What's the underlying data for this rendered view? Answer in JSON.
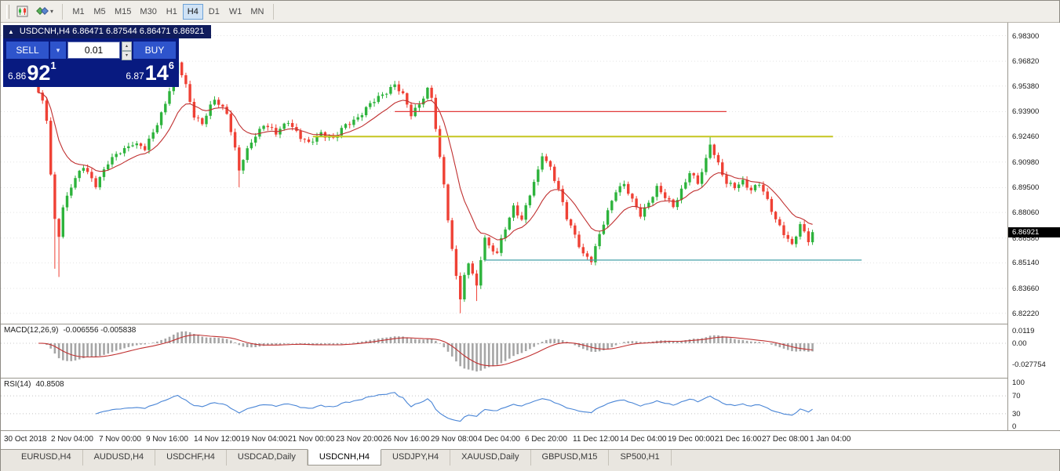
{
  "colors": {
    "candle_up": "#2db33c",
    "candle_down": "#ef4135",
    "ma_line": "#c03030",
    "macd_hist": "#a6a6a6",
    "macd_signal": "#c03030",
    "rsi_line": "#4985d6",
    "grid": "#e3e3e3",
    "badge_bg": "#000000",
    "trade_panel_bg": "#081a80",
    "trade_button_bg": "#2e54cc",
    "title_bg": "#101c5c"
  },
  "icons": {
    "collapse": "▲",
    "caret_down": "▾",
    "spin_up": "▴",
    "spin_down": "▾"
  },
  "window": {
    "toolbar": {
      "timeframes": [
        "M1",
        "M5",
        "M15",
        "M30",
        "H1",
        "H4",
        "D1",
        "W1",
        "MN"
      ],
      "active_timeframe": "H4"
    },
    "chart_title": "USDCNH,H4 6.86471 6.87544 6.86471 6.86921",
    "trade_panel": {
      "sell_label": "SELL",
      "buy_label": "BUY",
      "lot_size": "0.01",
      "bid_small": "6.86",
      "bid_big": "92",
      "bid_sup": "1",
      "ask_small": "6.87",
      "ask_big": "14",
      "ask_sup": "6"
    },
    "tabs": [
      "EURUSD,H4",
      "AUDUSD,H4",
      "USDCHF,H4",
      "USDCAD,Daily",
      "USDCNH,H4",
      "USDJPY,H4",
      "XAUUSD,Daily",
      "GBPUSD,M15",
      "SP500,H1"
    ],
    "active_tab": "USDCNH,H4"
  },
  "chart_data": {
    "type": "candlestick",
    "symbol": "USDCNH",
    "timeframe": "H4",
    "ohlc_display": {
      "open": "6.86471",
      "high": "6.87544",
      "low": "6.86471",
      "close": "6.86921"
    },
    "current_price": "6.86921",
    "price_axis": [
      "6.98300",
      "6.96820",
      "6.95380",
      "6.93900",
      "6.92460",
      "6.90980",
      "6.89500",
      "6.88060",
      "6.86580",
      "6.85140",
      "6.83660",
      "6.82220"
    ],
    "time_axis": [
      "30 Oct 2018",
      "2 Nov 04:00",
      "7 Nov 00:00",
      "9 Nov 16:00",
      "14 Nov 12:00",
      "19 Nov 04:00",
      "21 Nov 00:00",
      "23 Nov 20:00",
      "26 Nov 16:00",
      "29 Nov 08:00",
      "4 Dec 04:00",
      "6 Dec 20:00",
      "11 Dec 12:00",
      "14 Dec 04:00",
      "19 Dec 00:00",
      "21 Dec 16:00",
      "27 Dec 08:00",
      "1 Jan 04:00"
    ],
    "close_waypoints": [
      [
        0,
        6.95
      ],
      [
        1,
        6.944
      ],
      [
        2,
        6.934
      ],
      [
        3,
        6.902
      ],
      [
        4,
        6.876
      ],
      [
        5,
        6.868
      ],
      [
        6,
        6.884
      ],
      [
        8,
        6.896
      ],
      [
        11,
        6.907
      ],
      [
        14,
        6.897
      ],
      [
        17,
        6.909
      ],
      [
        20,
        6.916
      ],
      [
        23,
        6.921
      ],
      [
        26,
        6.917
      ],
      [
        28,
        6.927
      ],
      [
        31,
        6.944
      ],
      [
        34,
        6.967
      ],
      [
        36,
        6.954
      ],
      [
        38,
        6.937
      ],
      [
        40,
        6.932
      ],
      [
        43,
        6.946
      ],
      [
        46,
        6.939
      ],
      [
        48,
        6.917
      ],
      [
        49,
        6.905
      ],
      [
        52,
        6.922
      ],
      [
        55,
        6.932
      ],
      [
        58,
        6.926
      ],
      [
        61,
        6.934
      ],
      [
        64,
        6.924
      ],
      [
        66,
        6.92
      ],
      [
        69,
        6.927
      ],
      [
        72,
        6.923
      ],
      [
        75,
        6.931
      ],
      [
        78,
        6.936
      ],
      [
        81,
        6.943
      ],
      [
        84,
        6.949
      ],
      [
        87,
        6.955
      ],
      [
        89,
        6.948
      ],
      [
        91,
        6.937
      ],
      [
        93,
        6.944
      ],
      [
        95,
        6.952
      ],
      [
        96,
        6.947
      ],
      [
        97,
        6.929
      ],
      [
        98,
        6.911
      ],
      [
        99,
        6.897
      ],
      [
        100,
        6.877
      ],
      [
        101,
        6.859
      ],
      [
        102,
        6.845
      ],
      [
        103,
        6.831
      ],
      [
        104,
        6.843
      ],
      [
        105,
        6.851
      ],
      [
        106,
        6.845
      ],
      [
        107,
        6.837
      ],
      [
        108,
        6.854
      ],
      [
        109,
        6.867
      ],
      [
        110,
        6.861
      ],
      [
        112,
        6.857
      ],
      [
        114,
        6.871
      ],
      [
        116,
        6.884
      ],
      [
        118,
        6.877
      ],
      [
        120,
        6.891
      ],
      [
        122,
        6.904
      ],
      [
        123,
        6.914
      ],
      [
        125,
        6.907
      ],
      [
        127,
        6.894
      ],
      [
        129,
        6.877
      ],
      [
        131,
        6.867
      ],
      [
        133,
        6.857
      ],
      [
        135,
        6.853
      ],
      [
        137,
        6.867
      ],
      [
        139,
        6.881
      ],
      [
        141,
        6.894
      ],
      [
        143,
        6.897
      ],
      [
        145,
        6.887
      ],
      [
        147,
        6.879
      ],
      [
        149,
        6.887
      ],
      [
        151,
        6.895
      ],
      [
        153,
        6.889
      ],
      [
        155,
        6.884
      ],
      [
        157,
        6.894
      ],
      [
        159,
        6.904
      ],
      [
        161,
        6.897
      ],
      [
        163,
        6.911
      ],
      [
        164,
        6.921
      ],
      [
        166,
        6.909
      ],
      [
        168,
        6.897
      ],
      [
        170,
        6.895
      ],
      [
        172,
        6.899
      ],
      [
        174,
        6.894
      ],
      [
        176,
        6.897
      ],
      [
        178,
        6.887
      ],
      [
        180,
        6.877
      ],
      [
        182,
        6.869
      ],
      [
        184,
        6.861
      ],
      [
        186,
        6.873
      ],
      [
        188,
        6.865
      ],
      [
        189,
        6.8692
      ]
    ],
    "wick_overrides": {
      "4": {
        "low": 6.848
      },
      "5": {
        "low": 6.8432
      },
      "34": {
        "high": 6.9765
      },
      "49": {
        "low": 6.8952
      },
      "103": {
        "low": 6.8222
      },
      "107": {
        "low": 6.8293
      },
      "135": {
        "low": 6.8502
      },
      "164": {
        "high": 6.9249
      }
    },
    "hlines": [
      {
        "name": "resistance-red",
        "price": 6.939,
        "from_bar": 87,
        "to_bar": 168,
        "color": "#e23b3b",
        "w": 1.3
      },
      {
        "name": "resistance-yellow",
        "price": 6.9246,
        "from_bar": 67,
        "to_bar": 194,
        "color": "#c6c621",
        "w": 2
      },
      {
        "name": "support-teal",
        "price": 6.853,
        "from_bar": 109,
        "to_bar": 201,
        "color": "#45a0a8",
        "w": 1.3
      }
    ],
    "macd": {
      "label": "MACD(12,26,9)",
      "values": "-0.006556 -0.005838",
      "axis": [
        "0.0119",
        "0.00",
        "-0.027754"
      ]
    },
    "rsi": {
      "label": "RSI(14)",
      "value": "40.8508",
      "axis": [
        "100",
        "70",
        "30",
        "0"
      ],
      "levels": [
        70,
        30
      ]
    }
  }
}
